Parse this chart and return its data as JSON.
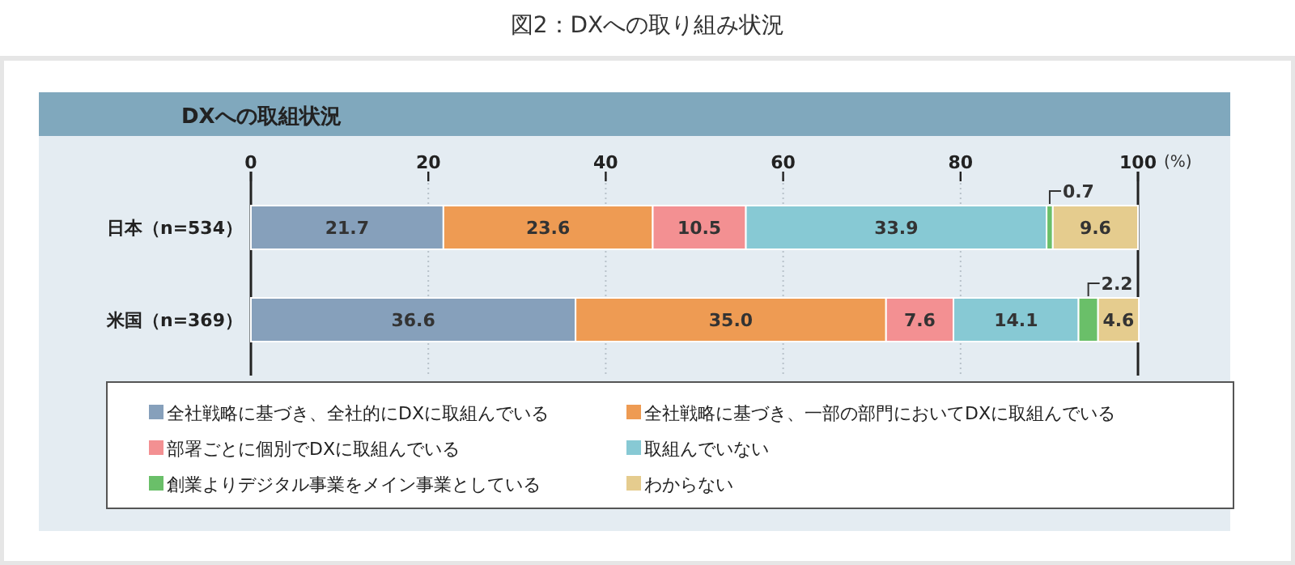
{
  "chart_data": {
    "type": "bar",
    "orientation": "horizontal",
    "stacked": true,
    "title": "図2：DXへの取り組み状況",
    "subtitle": "DXへの取組状況",
    "xlabel": "(%)",
    "categories": [
      "日本（n=534）",
      "米国（n=369）"
    ],
    "xlim": [
      0,
      100
    ],
    "xticks": [
      0,
      20,
      40,
      60,
      80,
      100
    ],
    "grid": "x",
    "legend": "bottom",
    "series": [
      {
        "name": "全社戦略に基づき、全社的にDXに取組んでいる",
        "color": "#86a0bb",
        "values": [
          21.7,
          36.6
        ],
        "value_labels": [
          "21.7",
          "36.6"
        ]
      },
      {
        "name": "全社戦略に基づき、一部の部門においてDXに取組んでいる",
        "color": "#ee9b53",
        "values": [
          23.6,
          35.0
        ],
        "value_labels": [
          "23.6",
          "35.0"
        ]
      },
      {
        "name": "部署ごとに個別でDXに取組んでいる",
        "color": "#f39092",
        "values": [
          10.5,
          7.6
        ],
        "value_labels": [
          "10.5",
          "7.6"
        ]
      },
      {
        "name": "取組んでいない",
        "color": "#87c9d4",
        "values": [
          33.9,
          14.1
        ],
        "value_labels": [
          "33.9",
          "14.1"
        ]
      },
      {
        "name": "創業よりデジタル事業をメイン事業としている",
        "color": "#6abf69",
        "values": [
          0.7,
          2.2
        ],
        "value_labels": [
          "0.7",
          "2.2"
        ]
      },
      {
        "name": "わからない",
        "color": "#e5cc8e",
        "values": [
          9.6,
          4.6
        ],
        "value_labels": [
          "9.6",
          "4.6"
        ]
      }
    ]
  }
}
